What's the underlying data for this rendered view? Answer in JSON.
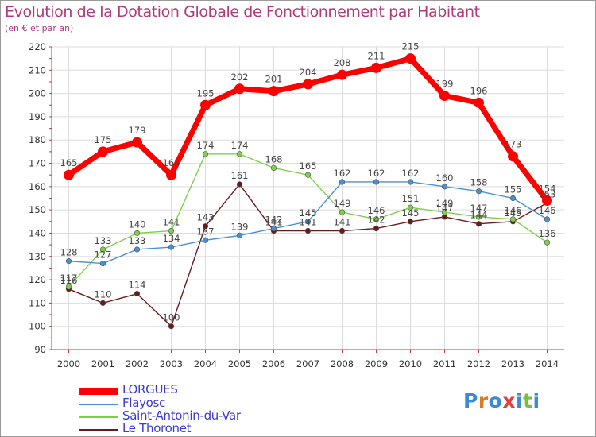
{
  "chart_data": {
    "type": "line",
    "title": "Evolution de la Dotation Globale de Fonctionnement par Habitant",
    "subtitle": "(en € et par an)",
    "x": [
      "2000",
      "2001",
      "2002",
      "2003",
      "2004",
      "2005",
      "2006",
      "2007",
      "2008",
      "2009",
      "2010",
      "2011",
      "2012",
      "2013",
      "2014"
    ],
    "ylim": [
      90,
      220
    ],
    "yticks": [
      90,
      100,
      110,
      120,
      130,
      140,
      150,
      160,
      170,
      180,
      190,
      200,
      210,
      220
    ],
    "grid": true,
    "series": [
      {
        "name": "LORGUES",
        "color": "#ff0000",
        "values": [
          165,
          175,
          179,
          165,
          195,
          202,
          201,
          204,
          208,
          211,
          215,
          199,
          196,
          173,
          154
        ]
      },
      {
        "name": "Flayosc",
        "color": "#4a90d0",
        "values": [
          128,
          127,
          133,
          134,
          137,
          139,
          142,
          145,
          162,
          162,
          162,
          160,
          158,
          155,
          146
        ]
      },
      {
        "name": "Saint-Antonin-du-Var",
        "color": "#7ed04a",
        "values": [
          117,
          133,
          140,
          141,
          174,
          174,
          168,
          165,
          149,
          146,
          151,
          149,
          147,
          146,
          136
        ]
      },
      {
        "name": "Le Thoronet",
        "color": "#6a1a1a",
        "values": [
          116,
          110,
          114,
          100,
          143,
          161,
          141,
          141,
          141,
          142,
          145,
          147,
          144,
          145,
          153
        ]
      }
    ]
  },
  "logo": {
    "letters": [
      "P",
      "r",
      "o",
      "x",
      "i",
      "t",
      "i"
    ],
    "colors": [
      "#3a8ad8",
      "#e07a20",
      "#3a8ad8",
      "#e04040",
      "#3a8ad8",
      "#7ac040",
      "#3a8ad8"
    ]
  }
}
